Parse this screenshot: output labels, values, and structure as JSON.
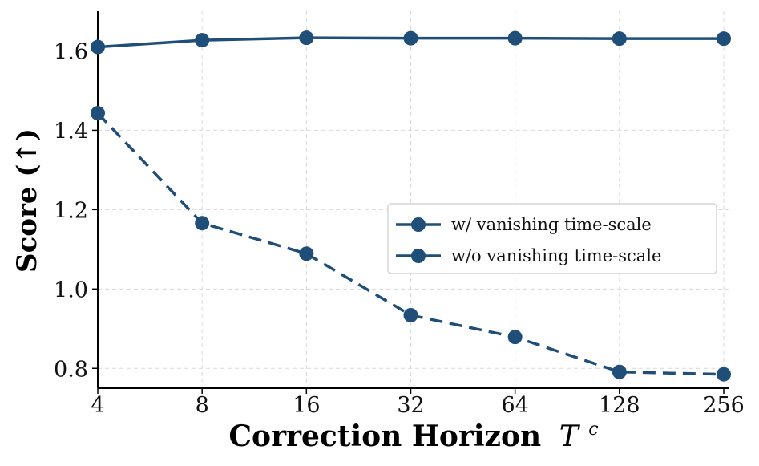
{
  "chart_data": {
    "type": "line",
    "x": [
      4,
      8,
      16,
      32,
      64,
      128,
      256
    ],
    "x_tick_labels": [
      "4",
      "8",
      "16",
      "32",
      "64",
      "128",
      "256"
    ],
    "x_scale": "log2",
    "xlabel": "Correction Horizon",
    "xlabel_symbol": "T",
    "xlabel_superscript": "c",
    "ylabel": "Score (↑)",
    "ylim": [
      0.75,
      1.7
    ],
    "y_ticks": [
      0.8,
      1.0,
      1.2,
      1.4,
      1.6
    ],
    "y_tick_labels": [
      "0.8",
      "1.0",
      "1.2",
      "1.4",
      "1.6"
    ],
    "grid": true,
    "legend_position": "center-right",
    "series": [
      {
        "name": "w/ vanishing time-scale",
        "style": "solid",
        "color": "#1f4e79",
        "values": [
          1.61,
          1.627,
          1.633,
          1.632,
          1.632,
          1.631,
          1.631
        ]
      },
      {
        "name": "w/o vanishing time-scale",
        "style": "dashed",
        "color": "#1f4e79",
        "values": [
          1.443,
          1.166,
          1.089,
          0.934,
          0.879,
          0.791,
          0.785
        ]
      }
    ]
  }
}
